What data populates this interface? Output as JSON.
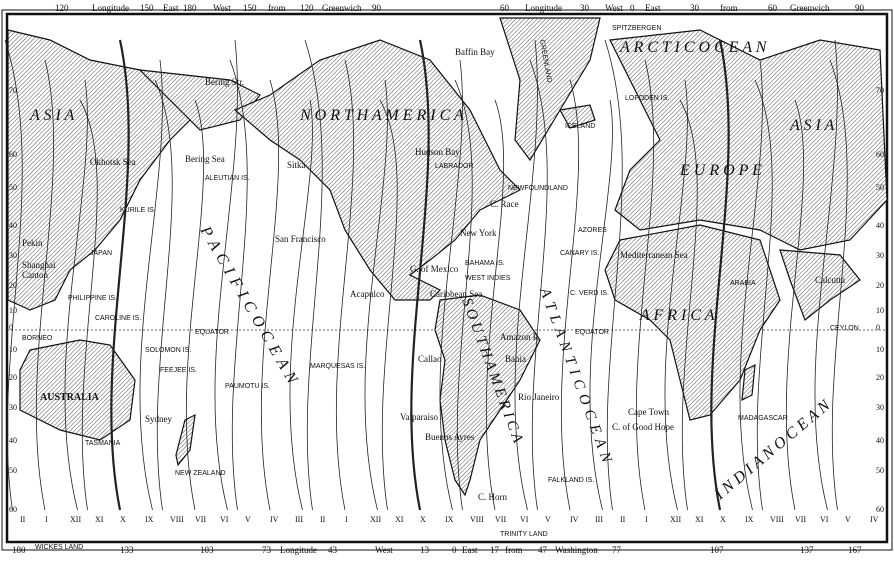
{
  "top_scale": [
    "120",
    "Longitude",
    "150",
    "East",
    "180",
    "West",
    "150",
    "from",
    "120",
    "Greenwich",
    "90",
    "60",
    "Longitude",
    "30",
    "West",
    "0",
    "East",
    "30",
    "from",
    "60",
    "Greenwich",
    "90"
  ],
  "bottom_scale": [
    "180",
    "133",
    "103",
    "73",
    "Longitude",
    "43",
    "West",
    "13",
    "0",
    "East",
    "17",
    "from",
    "47",
    "Washington",
    "77",
    "107",
    "137",
    "167"
  ],
  "latitudes_left": [
    "70",
    "60",
    "50",
    "40",
    "30",
    "20",
    "10",
    "0",
    "10",
    "20",
    "30",
    "40",
    "50",
    "60"
  ],
  "latitudes_right": [
    "70",
    "60",
    "50",
    "40",
    "30",
    "20",
    "10",
    "0",
    "10",
    "20",
    "30",
    "40",
    "50",
    "60"
  ],
  "equator_label": "EQUATOR",
  "continents": {
    "asia_left": "A S I A",
    "asia_right": "A S I A",
    "north_america": "N O R T H   A M E R I C A",
    "south_america": "S O U T H   A M E R I C A",
    "europe": "E U R O P E",
    "africa": "A F R I C A",
    "australia": "AUSTRALIA",
    "greenland": "GREENLAND"
  },
  "oceans": {
    "pacific": "P A C I F I C   O C E A N",
    "atlantic": "A T L A N T I C   O C E A N",
    "arctic": "A R C T I C   O C E A N",
    "indian": "I N D I A N   O C E A N"
  },
  "places": [
    "Baffin Bay",
    "SPITZBERGEN",
    "Bering Str.",
    "Bering Sea",
    "ALEUTIAN IS.",
    "Sitka",
    "Okhotsk Sea",
    "KURILE IS.",
    "Hudson Bay",
    "LABRADOR",
    "ICELAND",
    "LOFODEN IS.",
    "NEWFOUNDLAND",
    "C. Race",
    "New York",
    "AZORES",
    "San Francisco",
    "Pekin",
    "Shanghai",
    "Canton",
    "JAPAN",
    "G. of Mexico",
    "BAHAMA IS.",
    "WEST INDIES",
    "CANARY IS.",
    "Mediterranean Sea",
    "ARABIA",
    "Calcutta",
    "PHILIPPINE IS.",
    "CAROLINE IS.",
    "Acapulco",
    "Caribbean Sea",
    "C. VERD IS.",
    "BORNEO",
    "SOLOMON IS.",
    "MARQUESAS IS.",
    "Amazon R.",
    "Callao",
    "Bahia",
    "CEYLON",
    "FEEJEE IS.",
    "PAUMOTU IS.",
    "Rio Janeiro",
    "MADAGASCAR",
    "Sydney",
    "Valparaiso",
    "Cape Town",
    "C. of Good Hope",
    "TASMANIA",
    "NEW ZEALAND",
    "Buenos Ayres",
    "FALKLAND IS.",
    "C. Horn",
    "WICKES LAND",
    "TRINITY LAND"
  ],
  "hour_labels": [
    "II",
    "I",
    "XII",
    "XI",
    "X",
    "IX",
    "VIII",
    "VII",
    "VI",
    "V",
    "IV",
    "III",
    "II",
    "I",
    "XII",
    "XI",
    "X",
    "IX",
    "VIII",
    "VII",
    "VI",
    "V",
    "IV",
    "III",
    "II",
    "I",
    "XII",
    "XI",
    "X",
    "IX",
    "VIII",
    "VII",
    "VI",
    "V",
    "IV"
  ]
}
